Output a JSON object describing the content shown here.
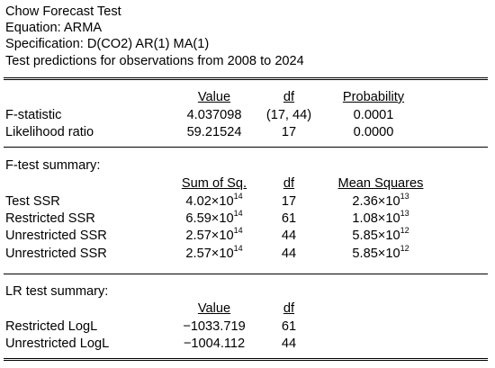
{
  "header": {
    "title": "Chow Forecast Test",
    "equation": "Equation: ARMA",
    "specification": "Specification: D(CO2) AR(1) MA(1)",
    "test_range": "Test predictions for observations from 2008 to 2024"
  },
  "main_table": {
    "columns": [
      "Value",
      "df",
      "Probability"
    ],
    "rows": [
      {
        "label": "F-statistic",
        "value": "4.037098",
        "df": "(17, 44)",
        "prob": "0.0001"
      },
      {
        "label": "Likelihood ratio",
        "value": "59.21524",
        "df": "17",
        "prob": "0.0000"
      }
    ]
  },
  "f_summary": {
    "title": "F-test summary:",
    "columns": [
      "Sum of Sq.",
      "df",
      "Mean Squares"
    ],
    "rows": [
      {
        "label": "Test SSR",
        "ss_mant": "4.02×10",
        "ss_exp": "14",
        "df": "17",
        "ms_mant": "2.36×10",
        "ms_exp": "13"
      },
      {
        "label": "Restricted SSR",
        "ss_mant": "6.59×10",
        "ss_exp": "14",
        "df": "61",
        "ms_mant": "1.08×10",
        "ms_exp": "13"
      },
      {
        "label": "Unrestricted SSR",
        "ss_mant": "2.57×10",
        "ss_exp": "14",
        "df": "44",
        "ms_mant": "5.85×10",
        "ms_exp": "12"
      },
      {
        "label": "Unrestricted SSR",
        "ss_mant": "2.57×10",
        "ss_exp": "14",
        "df": "44",
        "ms_mant": "5.85×10",
        "ms_exp": "12"
      }
    ]
  },
  "lr_summary": {
    "title": "LR test summary:",
    "columns": [
      "Value",
      "df"
    ],
    "rows": [
      {
        "label": "Restricted LogL",
        "value": "−1033.719",
        "df": "61"
      },
      {
        "label": "Unrestricted LogL",
        "value": "−1004.112",
        "df": "44"
      }
    ]
  }
}
